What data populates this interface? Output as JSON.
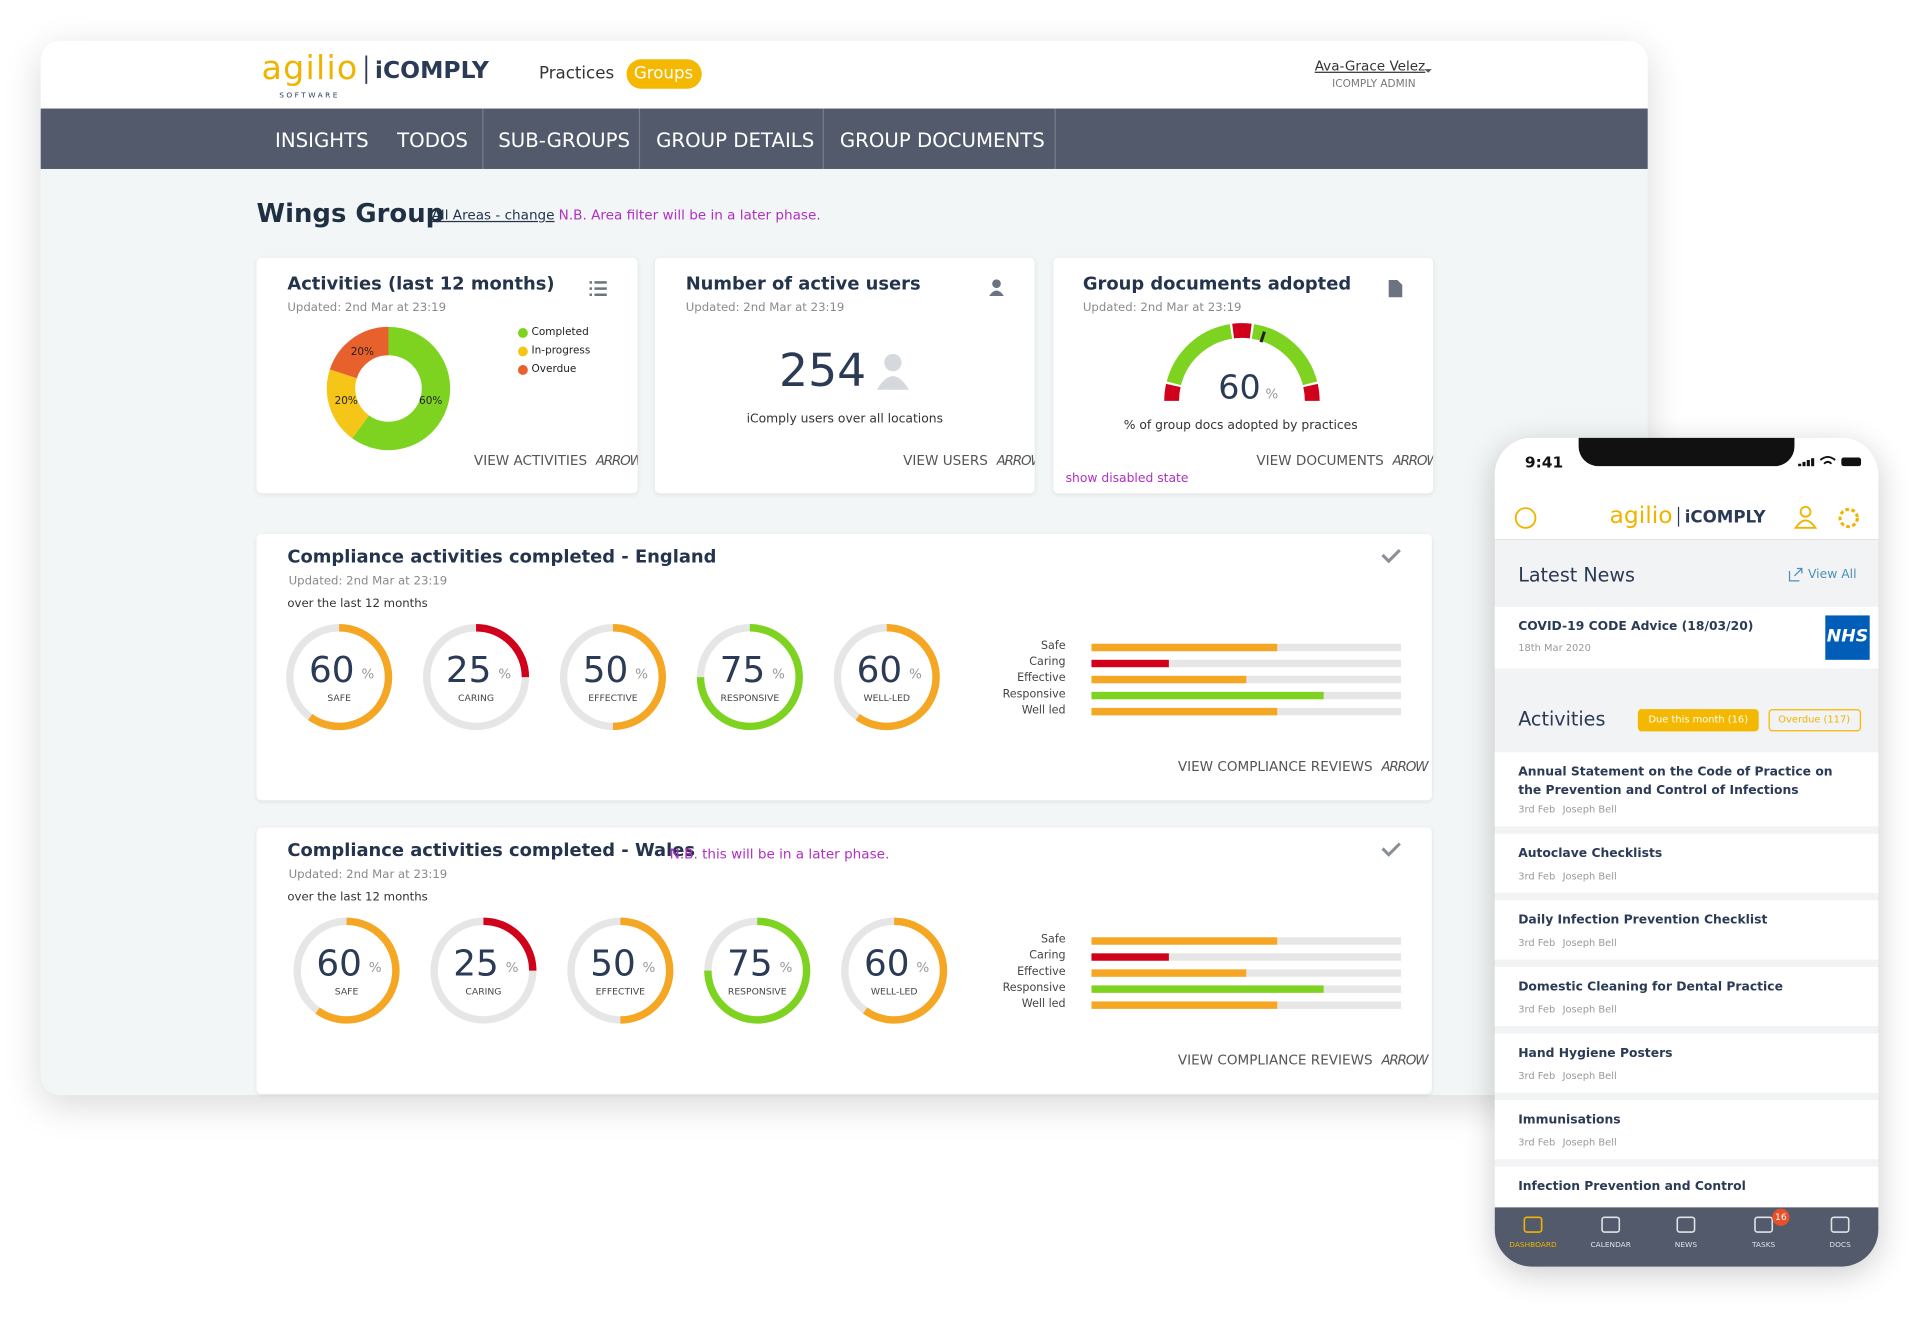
{
  "desktop": {
    "logo": {
      "brand": "agilio",
      "tagline": "SOFTWARE",
      "product": "iCOMPLY"
    },
    "nav": [
      "Practices",
      "Groups"
    ],
    "user": {
      "name": "Ava-Grace Velez",
      "role": "ICOMPLY ADMIN"
    },
    "tabs": [
      "INSIGHTS",
      "TODOS",
      "SUB-GROUPS",
      "GROUP DETAILS",
      "GROUP DOCUMENTS"
    ],
    "heading": {
      "title": "Wings Group",
      "filter": "All Areas - change",
      "note": "N.B. Area filter will be in a later phase."
    },
    "activities": {
      "title": "Activities (last 12 months)",
      "updated": "Updated: 2nd Mar at 23:19",
      "chart_data": {
        "type": "pie",
        "categories": [
          "Completed",
          "In-progress",
          "Overdue"
        ],
        "values": [
          60,
          20,
          20
        ],
        "value_labels": [
          "60%",
          "20%",
          "20%"
        ],
        "colors": [
          "#7ed321",
          "#f5c518",
          "#e8602c"
        ]
      },
      "link": "VIEW ACTIVITIES",
      "arrow": "ARROW"
    },
    "users": {
      "title": "Number of active users",
      "updated": "Updated: 2nd Mar at 23:19",
      "value": 254,
      "caption": "iComply users over all locations",
      "link": "VIEW USERS",
      "arrow": "ARROW"
    },
    "documents": {
      "title": "Group documents adopted",
      "updated": "Updated: 2nd Mar at 23:19",
      "chart_data": {
        "type": "gauge",
        "value": 60,
        "unit": "%",
        "ylim": [
          0,
          100
        ]
      },
      "caption": "% of group docs adopted by practices",
      "note": "show disabled state",
      "link": "VIEW DOCUMENTS",
      "arrow": "ARROW"
    },
    "england": {
      "title": "Compliance activities completed - England",
      "updated": "Updated: 2nd Mar at 23:19",
      "period": "over the last 12 months",
      "areas": [
        "SAFE",
        "CARING",
        "EFFECTIVE",
        "RESPONSIVE",
        "WELL-LED"
      ],
      "unit": "%",
      "chart_data": {
        "type": "bar",
        "categories": [
          "Safe",
          "Caring",
          "Effective",
          "Responsive",
          "Well led"
        ],
        "values": [
          60,
          25,
          50,
          75,
          60
        ],
        "colors": [
          "#f5a623",
          "#d0021b",
          "#f5a623",
          "#7ed321",
          "#f5a623"
        ],
        "xlim": [
          0,
          100
        ]
      },
      "link": "VIEW COMPLIANCE REVIEWS",
      "arrow": "ARROW"
    },
    "wales": {
      "title": "Compliance activities completed - Wales",
      "note": "N.B. this will be in a later phase.",
      "updated": "Updated: 2nd Mar at 23:19",
      "period": "over the last 12 months",
      "areas": [
        "SAFE",
        "CARING",
        "EFFECTIVE",
        "RESPONSIVE",
        "WELL-LED"
      ],
      "unit": "%",
      "chart_data": {
        "type": "bar",
        "categories": [
          "Safe",
          "Caring",
          "Effective",
          "Responsive",
          "Well led"
        ],
        "values": [
          60,
          25,
          50,
          75,
          60
        ],
        "colors": [
          "#f5a623",
          "#d0021b",
          "#f5a623",
          "#7ed321",
          "#f5a623"
        ],
        "xlim": [
          0,
          100
        ]
      },
      "link": "VIEW COMPLIANCE REVIEWS",
      "arrow": "ARROW"
    }
  },
  "phone": {
    "time": "9:41",
    "logo": {
      "brand": "agilio",
      "product": "iCOMPLY"
    },
    "news": {
      "title": "Latest News",
      "link": "View All",
      "items": [
        {
          "title": "COVID-19 CODE Advice (18/03/20)",
          "date": "18th Mar 2020",
          "badge": "NHS"
        }
      ]
    },
    "activities": {
      "title": "Activities",
      "filters": [
        "Due this month (16)",
        "Overdue (117)"
      ],
      "items": [
        {
          "title": "Annual Statement on the Code of Practice on the Prevention and Control of Infections",
          "date": "3rd Feb",
          "person": "Joseph Bell"
        },
        {
          "title": "Autoclave Checklists",
          "date": "3rd Feb",
          "person": "Joseph Bell"
        },
        {
          "title": "Daily Infection Prevention Checklist",
          "date": "3rd Feb",
          "person": "Joseph Bell"
        },
        {
          "title": "Domestic Cleaning for Dental Practice",
          "date": "3rd Feb",
          "person": "Joseph Bell"
        },
        {
          "title": "Hand Hygiene Posters",
          "date": "3rd Feb",
          "person": "Joseph Bell"
        },
        {
          "title": "Immunisations",
          "date": "3rd Feb",
          "person": "Joseph Bell"
        },
        {
          "title": "Infection Prevention and Control"
        }
      ]
    },
    "tabbar": [
      {
        "label": "DASHBOARD"
      },
      {
        "label": "CALENDAR"
      },
      {
        "label": "NEWS"
      },
      {
        "label": "TASKS",
        "badge": 16
      },
      {
        "label": "DOCS"
      }
    ]
  }
}
